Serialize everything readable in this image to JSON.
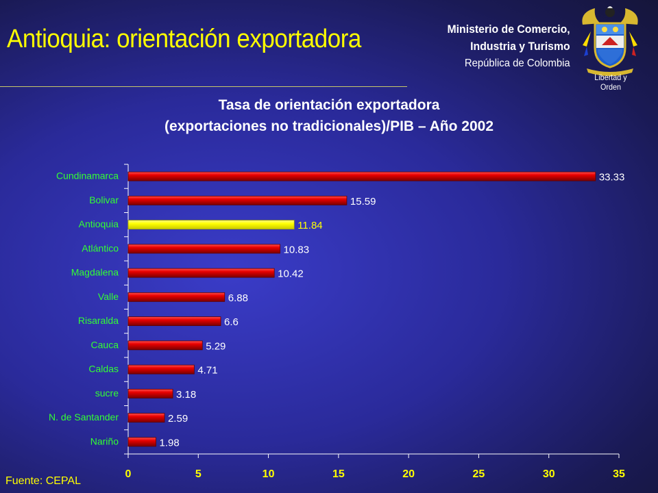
{
  "header": {
    "title": "Antioquia: orientación exportadora",
    "ministry_line1": "Ministerio de Comercio,",
    "ministry_line2": "Industria y Turismo",
    "ministry_line3": "República de Colombia",
    "motto": "Libertad y Orden"
  },
  "colors": {
    "title": "#ffff00",
    "bar": "#e00000",
    "bar_highlight": "#ffff00",
    "category_label": "#33ff33",
    "axis": "#ffffff"
  },
  "chart_data": {
    "type": "bar",
    "orientation": "horizontal",
    "title_line1": "Tasa de orientación exportadora",
    "title_line2": "(exportaciones no tradicionales)/PIB – Año 2002",
    "categories": [
      "Cundinamarca",
      "Bolivar",
      "Antioquia",
      "Atlántico",
      "Magdalena",
      "Valle",
      "Risaralda",
      "Cauca",
      "Caldas",
      "sucre",
      "N. de Santander",
      "Nariño"
    ],
    "values": [
      33.33,
      15.59,
      11.84,
      10.83,
      10.42,
      6.88,
      6.6,
      5.29,
      4.71,
      3.18,
      2.59,
      1.98
    ],
    "value_labels": [
      "33.33",
      "15.59",
      "11.84",
      "10.83",
      "10.42",
      "6.88",
      "6.6",
      "5.29",
      "4.71",
      "3.18",
      "2.59",
      "1.98"
    ],
    "highlight": "Antioquia",
    "xlim": [
      0,
      35
    ],
    "xticks": [
      "0",
      "5",
      "10",
      "15",
      "20",
      "25",
      "30",
      "35"
    ],
    "grid": false
  },
  "source": "Fuente: CEPAL"
}
